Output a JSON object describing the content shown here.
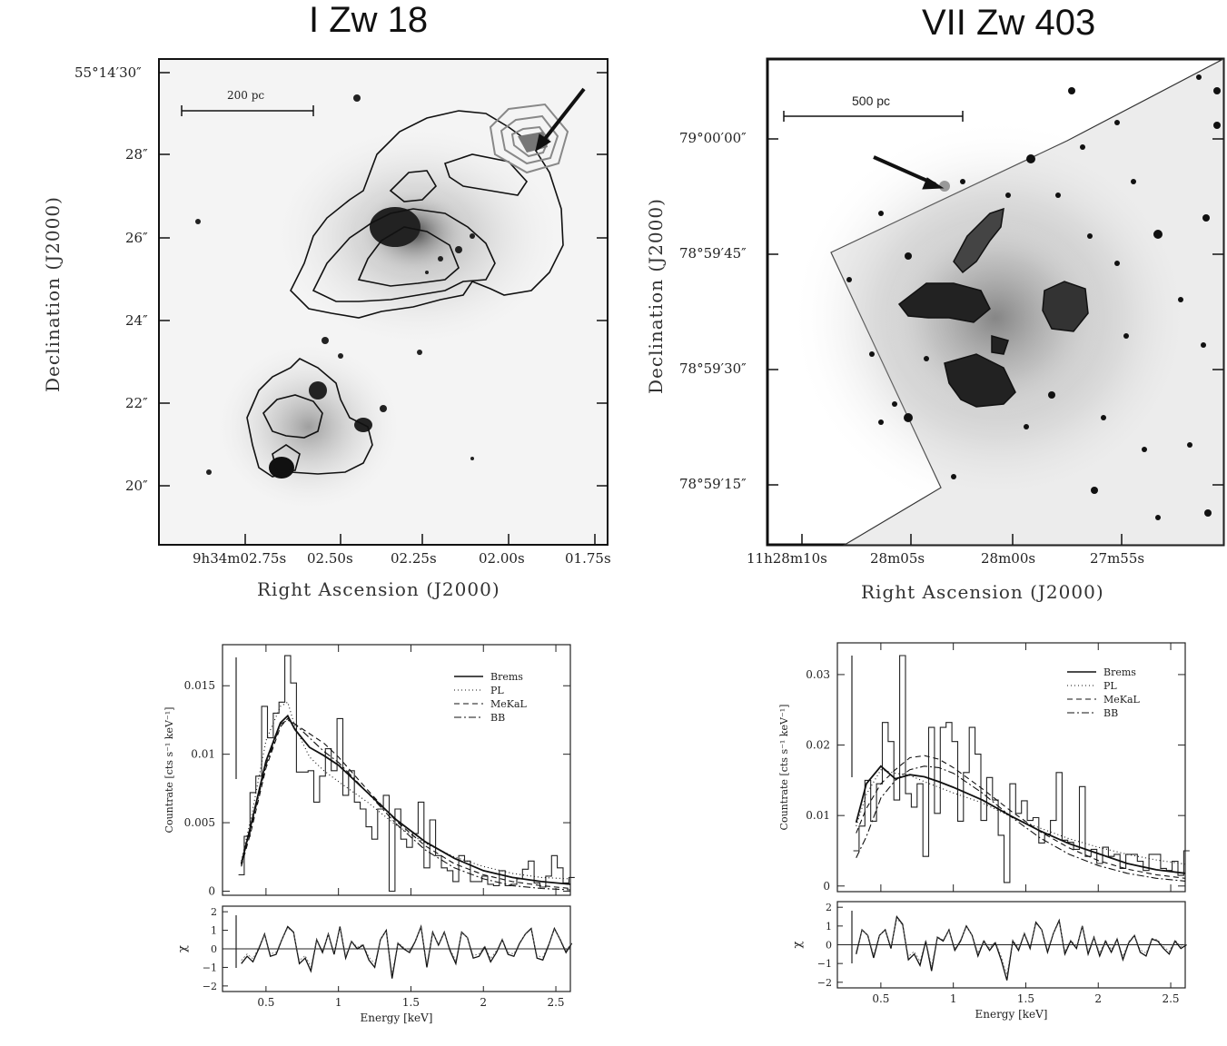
{
  "panels": {
    "izw18": {
      "title": "I Zw 18",
      "xlabel": "Right Ascension (J2000)",
      "ylabel": "Declination (J2000)",
      "scale_bar": "200 pc",
      "ra_ticks": [
        "9h34m02.75s",
        "02.50s",
        "02.25s",
        "02.00s",
        "01.75s"
      ],
      "dec_ticks": [
        "55°14′30″",
        "28″",
        "26″",
        "24″",
        "22″",
        "20″"
      ]
    },
    "viizw403": {
      "title": "VII Zw 403",
      "xlabel": "Right Ascension (J2000)",
      "ylabel": "Declination (J2000)",
      "scale_bar": "500 pc",
      "ra_ticks": [
        "11h28m10s",
        "28m05s",
        "28m00s",
        "27m55s"
      ],
      "dec_ticks": [
        "79°00′00″",
        "78°59′45″",
        "78°59′30″",
        "78°59′15″"
      ]
    }
  },
  "chart_data": [
    {
      "type": "line",
      "id": "spec_izw18",
      "xlabel": "Energy [keV]",
      "ylabel": "Countrate [cts s⁻¹ keV⁻¹]",
      "xlim": [
        0.2,
        2.6
      ],
      "ylim": [
        -0.0003,
        0.018
      ],
      "xticks": [
        0.5,
        1,
        1.5,
        2,
        2.5
      ],
      "xtick_labels": [
        "0.5",
        "1",
        "1.5",
        "2",
        "2.5"
      ],
      "yticks": [
        0,
        0.005,
        0.01,
        0.015
      ],
      "ytick_labels": [
        "0",
        "0.005",
        "0.01",
        "0.015"
      ],
      "legend": [
        "Brems",
        "PL",
        "MeKaL",
        "BB"
      ],
      "data_step": {
        "x": [
          0.33,
          0.37,
          0.41,
          0.45,
          0.49,
          0.53,
          0.57,
          0.61,
          0.65,
          0.69,
          0.73,
          0.77,
          0.81,
          0.85,
          0.89,
          0.93,
          0.97,
          1.01,
          1.05,
          1.09,
          1.13,
          1.17,
          1.21,
          1.25,
          1.29,
          1.33,
          1.37,
          1.41,
          1.45,
          1.49,
          1.53,
          1.57,
          1.61,
          1.65,
          1.69,
          1.73,
          1.77,
          1.81,
          1.85,
          1.89,
          1.93,
          1.97,
          2.01,
          2.05,
          2.09,
          2.13,
          2.17,
          2.21,
          2.25,
          2.29,
          2.33,
          2.37,
          2.41,
          2.45,
          2.49,
          2.53,
          2.57,
          2.61
        ],
        "y": [
          0.0012,
          0.004,
          0.0072,
          0.0084,
          0.0135,
          0.0112,
          0.013,
          0.0138,
          0.0172,
          0.0152,
          0.0087,
          0.0087,
          0.0088,
          0.0065,
          0.0084,
          0.0104,
          0.0088,
          0.0126,
          0.007,
          0.0088,
          0.0065,
          0.006,
          0.0047,
          0.0038,
          0.006,
          0.007,
          0.0,
          0.006,
          0.0038,
          0.0032,
          0.0042,
          0.0065,
          0.0017,
          0.0052,
          0.0026,
          0.0017,
          0.0015,
          0.0007,
          0.0026,
          0.0022,
          0.0007,
          0.0007,
          0.0011,
          0.0005,
          0.0004,
          0.0015,
          0.0004,
          0.0005,
          0.0009,
          0.0016,
          0.0022,
          0.0006,
          0.0003,
          0.0011,
          0.0026,
          0.0017,
          0.0006,
          0.001
        ]
      },
      "models": [
        {
          "name": "Brems",
          "dash": "",
          "x": [
            0.33,
            0.4,
            0.5,
            0.6,
            0.65,
            0.7,
            0.8,
            0.9,
            1.0,
            1.2,
            1.4,
            1.6,
            1.8,
            2.0,
            2.2,
            2.4,
            2.6
          ],
          "y": [
            0.002,
            0.005,
            0.0095,
            0.0123,
            0.0128,
            0.0118,
            0.0105,
            0.0099,
            0.0092,
            0.0072,
            0.0052,
            0.0036,
            0.0024,
            0.0015,
            0.001,
            0.0007,
            0.0005
          ]
        },
        {
          "name": "PL",
          "dash": "1,3",
          "x": [
            0.33,
            0.4,
            0.5,
            0.6,
            0.65,
            0.7,
            0.8,
            0.9,
            1.0,
            1.2,
            1.4,
            1.6,
            1.8,
            2.0,
            2.2,
            2.4,
            2.6
          ],
          "y": [
            0.0022,
            0.0055,
            0.011,
            0.0135,
            0.0138,
            0.012,
            0.0098,
            0.0088,
            0.008,
            0.0065,
            0.0048,
            0.0035,
            0.0025,
            0.0018,
            0.0013,
            0.001,
            0.0009
          ]
        },
        {
          "name": "MeKaL",
          "dash": "6,4",
          "x": [
            0.33,
            0.4,
            0.5,
            0.6,
            0.65,
            0.7,
            0.8,
            0.9,
            1.0,
            1.2,
            1.4,
            1.6,
            1.8,
            2.0,
            2.2,
            2.4,
            2.6
          ],
          "y": [
            0.0018,
            0.0045,
            0.009,
            0.012,
            0.0126,
            0.0122,
            0.0115,
            0.0108,
            0.0098,
            0.0074,
            0.0051,
            0.0033,
            0.002,
            0.0012,
            0.0007,
            0.0004,
            0.0002
          ]
        },
        {
          "name": "BB",
          "dash": "8,3,2,3",
          "x": [
            0.33,
            0.4,
            0.5,
            0.6,
            0.65,
            0.7,
            0.8,
            0.9,
            1.0,
            1.2,
            1.4,
            1.6,
            1.8,
            2.0,
            2.2,
            2.4,
            2.6
          ],
          "y": [
            0.0019,
            0.0048,
            0.0092,
            0.0122,
            0.0125,
            0.0122,
            0.0112,
            0.0102,
            0.0094,
            0.0072,
            0.0049,
            0.003,
            0.0017,
            0.0009,
            0.0004,
            0.0002,
            0.0001
          ]
        }
      ],
      "resid": {
        "ylim": [
          -2.3,
          2.3
        ],
        "yticks": [
          -2,
          -1,
          0,
          1,
          2
        ],
        "ytick_labels": [
          "−2",
          "−1",
          "0",
          "1",
          "2"
        ],
        "ylabel": "χ",
        "x": [
          0.33,
          0.37,
          0.41,
          0.45,
          0.49,
          0.53,
          0.57,
          0.61,
          0.65,
          0.69,
          0.73,
          0.77,
          0.81,
          0.85,
          0.89,
          0.93,
          0.97,
          1.01,
          1.05,
          1.09,
          1.13,
          1.17,
          1.21,
          1.25,
          1.29,
          1.33,
          1.37,
          1.41,
          1.45,
          1.49,
          1.53,
          1.57,
          1.61,
          1.65,
          1.69,
          1.73,
          1.77,
          1.81,
          1.85,
          1.89,
          1.93,
          1.97,
          2.01,
          2.05,
          2.09,
          2.13,
          2.17,
          2.21,
          2.25,
          2.29,
          2.33,
          2.37,
          2.41,
          2.45,
          2.49,
          2.53,
          2.57,
          2.61
        ],
        "y": [
          -0.8,
          -0.4,
          -0.7,
          0.0,
          0.8,
          -0.4,
          -0.3,
          0.5,
          1.2,
          0.9,
          -0.8,
          -0.5,
          -1.2,
          0.5,
          -0.2,
          0.8,
          -0.3,
          1.2,
          -0.5,
          0.4,
          0.0,
          0.2,
          -0.6,
          -1.0,
          0.5,
          1.0,
          -1.6,
          0.3,
          0.0,
          -0.2,
          0.4,
          1.2,
          -1.0,
          0.9,
          0.2,
          0.9,
          -0.1,
          -0.8,
          0.9,
          0.6,
          -0.5,
          -0.4,
          0.1,
          -0.7,
          -0.2,
          0.5,
          -0.3,
          -0.4,
          0.3,
          0.8,
          1.1,
          -0.5,
          -0.6,
          0.2,
          1.1,
          0.5,
          -0.2,
          0.3
        ]
      }
    },
    {
      "type": "line",
      "id": "spec_viizw403",
      "xlabel": "Energy [keV]",
      "ylabel": "Countrate [cts s⁻¹ keV⁻¹]",
      "xlim": [
        0.2,
        2.6
      ],
      "ylim": [
        -0.0008,
        0.0345
      ],
      "xticks": [
        0.5,
        1,
        1.5,
        2,
        2.5
      ],
      "xtick_labels": [
        "0.5",
        "1",
        "1.5",
        "2",
        "2.5"
      ],
      "yticks": [
        0,
        0.01,
        0.02,
        0.03
      ],
      "ytick_labels": [
        "0",
        "0.01",
        "0.02",
        "0.03"
      ],
      "legend": [
        "Brems",
        "PL",
        "MeKaL",
        "BB"
      ],
      "data_step": {
        "x": [
          0.33,
          0.37,
          0.41,
          0.45,
          0.49,
          0.53,
          0.57,
          0.61,
          0.65,
          0.69,
          0.73,
          0.77,
          0.81,
          0.85,
          0.89,
          0.93,
          0.97,
          1.01,
          1.05,
          1.09,
          1.13,
          1.17,
          1.21,
          1.25,
          1.29,
          1.33,
          1.37,
          1.41,
          1.45,
          1.49,
          1.53,
          1.57,
          1.61,
          1.65,
          1.69,
          1.73,
          1.77,
          1.81,
          1.85,
          1.89,
          1.93,
          1.97,
          2.01,
          2.05,
          2.09,
          2.13,
          2.17,
          2.21,
          2.25,
          2.29,
          2.33,
          2.37,
          2.41,
          2.45,
          2.49,
          2.53,
          2.57,
          2.61
        ],
        "y": [
          0.005,
          0.0085,
          0.015,
          0.0092,
          0.0145,
          0.0232,
          0.0205,
          0.0122,
          0.0327,
          0.0131,
          0.0112,
          0.0145,
          0.0042,
          0.0225,
          0.0103,
          0.0225,
          0.0232,
          0.0205,
          0.0092,
          0.0161,
          0.0225,
          0.0187,
          0.0093,
          0.0154,
          0.0122,
          0.0072,
          0.0005,
          0.0145,
          0.0103,
          0.0121,
          0.0093,
          0.0097,
          0.0061,
          0.0074,
          0.0093,
          0.0161,
          0.0065,
          0.0062,
          0.0052,
          0.0141,
          0.0042,
          0.0052,
          0.0032,
          0.0055,
          0.0042,
          0.0045,
          0.0025,
          0.0045,
          0.0045,
          0.0035,
          0.0022,
          0.0045,
          0.0045,
          0.0025,
          0.0022,
          0.0035,
          0.0015,
          0.005
        ]
      },
      "models": [
        {
          "name": "Brems",
          "dash": "",
          "x": [
            0.33,
            0.4,
            0.5,
            0.6,
            0.7,
            0.8,
            0.9,
            1.0,
            1.2,
            1.4,
            1.6,
            1.8,
            2.0,
            2.2,
            2.4,
            2.6
          ],
          "y": [
            0.009,
            0.0145,
            0.017,
            0.0152,
            0.0158,
            0.0155,
            0.0148,
            0.014,
            0.0122,
            0.0099,
            0.0078,
            0.006,
            0.0046,
            0.0032,
            0.0023,
            0.0018
          ]
        },
        {
          "name": "PL",
          "dash": "1,3",
          "x": [
            0.33,
            0.4,
            0.5,
            0.6,
            0.7,
            0.8,
            0.9,
            1.0,
            1.2,
            1.4,
            1.6,
            1.8,
            2.0,
            2.2,
            2.4,
            2.6
          ],
          "y": [
            0.0085,
            0.013,
            0.0165,
            0.016,
            0.0157,
            0.0148,
            0.014,
            0.0132,
            0.0118,
            0.0098,
            0.0082,
            0.0067,
            0.0055,
            0.0045,
            0.0037,
            0.0031
          ]
        },
        {
          "name": "MeKaL",
          "dash": "6,4",
          "x": [
            0.33,
            0.4,
            0.5,
            0.6,
            0.7,
            0.8,
            0.9,
            1.0,
            1.2,
            1.4,
            1.6,
            1.8,
            2.0,
            2.2,
            2.4,
            2.6
          ],
          "y": [
            0.0075,
            0.011,
            0.0145,
            0.0165,
            0.0182,
            0.0185,
            0.018,
            0.0168,
            0.0138,
            0.0106,
            0.0077,
            0.0054,
            0.0036,
            0.0024,
            0.0016,
            0.0011
          ]
        },
        {
          "name": "BB",
          "dash": "8,3,2,3",
          "x": [
            0.33,
            0.4,
            0.5,
            0.6,
            0.7,
            0.8,
            0.9,
            1.0,
            1.2,
            1.4,
            1.6,
            1.8,
            2.0,
            2.2,
            2.4,
            2.6
          ],
          "y": [
            0.004,
            0.007,
            0.0125,
            0.015,
            0.0165,
            0.017,
            0.0168,
            0.016,
            0.0132,
            0.0098,
            0.0068,
            0.0045,
            0.0029,
            0.0018,
            0.0011,
            0.0007
          ]
        }
      ],
      "resid": {
        "ylim": [
          -2.3,
          2.3
        ],
        "yticks": [
          -2,
          -1,
          0,
          1,
          2
        ],
        "ytick_labels": [
          "−2",
          "−1",
          "0",
          "1",
          "2"
        ],
        "ylabel": "χ",
        "x": [
          0.33,
          0.37,
          0.41,
          0.45,
          0.49,
          0.53,
          0.57,
          0.61,
          0.65,
          0.69,
          0.73,
          0.77,
          0.81,
          0.85,
          0.89,
          0.93,
          0.97,
          1.01,
          1.05,
          1.09,
          1.13,
          1.17,
          1.21,
          1.25,
          1.29,
          1.33,
          1.37,
          1.41,
          1.45,
          1.49,
          1.53,
          1.57,
          1.61,
          1.65,
          1.69,
          1.73,
          1.77,
          1.81,
          1.85,
          1.89,
          1.93,
          1.97,
          2.01,
          2.05,
          2.09,
          2.13,
          2.17,
          2.21,
          2.25,
          2.29,
          2.33,
          2.37,
          2.41,
          2.45,
          2.49,
          2.53,
          2.57,
          2.61
        ],
        "y": [
          -0.5,
          0.8,
          0.5,
          -0.7,
          0.5,
          0.8,
          -0.2,
          1.5,
          1.1,
          -0.8,
          -0.5,
          -1.1,
          0.2,
          -1.4,
          0.4,
          0.2,
          0.8,
          -0.3,
          0.2,
          1.0,
          0.5,
          -0.6,
          0.2,
          -0.3,
          0.1,
          -0.8,
          -1.9,
          0.2,
          -0.3,
          0.6,
          -0.2,
          1.2,
          0.8,
          -0.4,
          0.6,
          1.3,
          -0.5,
          0.2,
          -0.2,
          1.0,
          -0.5,
          0.4,
          -0.6,
          0.2,
          -0.4,
          0.3,
          -0.8,
          0.1,
          0.5,
          -0.4,
          -0.6,
          0.3,
          0.2,
          -0.2,
          -0.5,
          0.2,
          -0.2,
          0.0
        ]
      }
    }
  ]
}
